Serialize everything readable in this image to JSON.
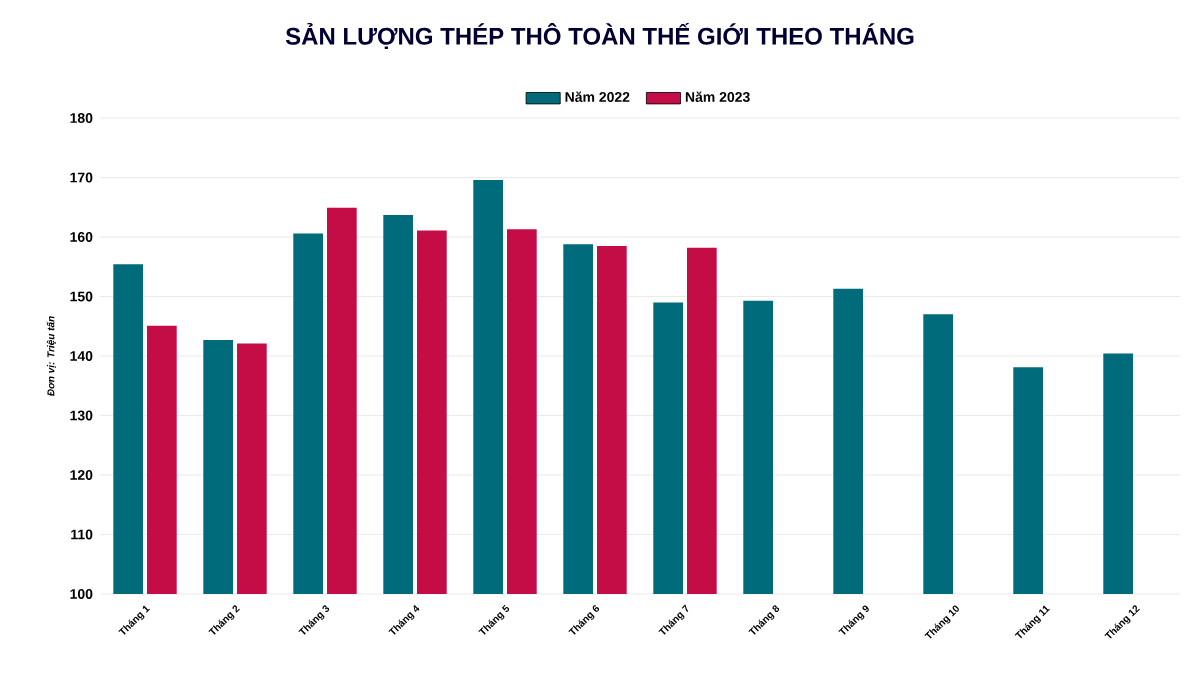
{
  "chart_data": {
    "type": "bar",
    "title": "SẢN LƯỢNG THÉP THÔ TOÀN THẾ GIỚI THEO THÁNG",
    "ylabel": "Đơn vị: Triệu tấn",
    "categories": [
      "Tháng 1",
      "Tháng 2",
      "Tháng 3",
      "Tháng 4",
      "Tháng 5",
      "Tháng 6",
      "Tháng 7",
      "Tháng 8",
      "Tháng 9",
      "Tháng 10",
      "Tháng 11",
      "Tháng 12"
    ],
    "series": [
      {
        "name": "Năm 2022",
        "color": "#006b7a",
        "values": [
          155.4,
          142.7,
          160.6,
          163.7,
          169.6,
          158.8,
          149.0,
          149.3,
          151.3,
          147.0,
          138.1,
          140.4
        ]
      },
      {
        "name": "Năm 2023",
        "color": "#c40d47",
        "values": [
          145.1,
          142.1,
          164.9,
          161.1,
          161.3,
          158.5,
          158.2,
          null,
          null,
          null,
          null,
          null
        ]
      }
    ],
    "ylim": [
      100,
      180
    ],
    "yticks": [
      100,
      110,
      120,
      130,
      140,
      150,
      160,
      170,
      180
    ],
    "grid": "y",
    "legend": "top"
  }
}
